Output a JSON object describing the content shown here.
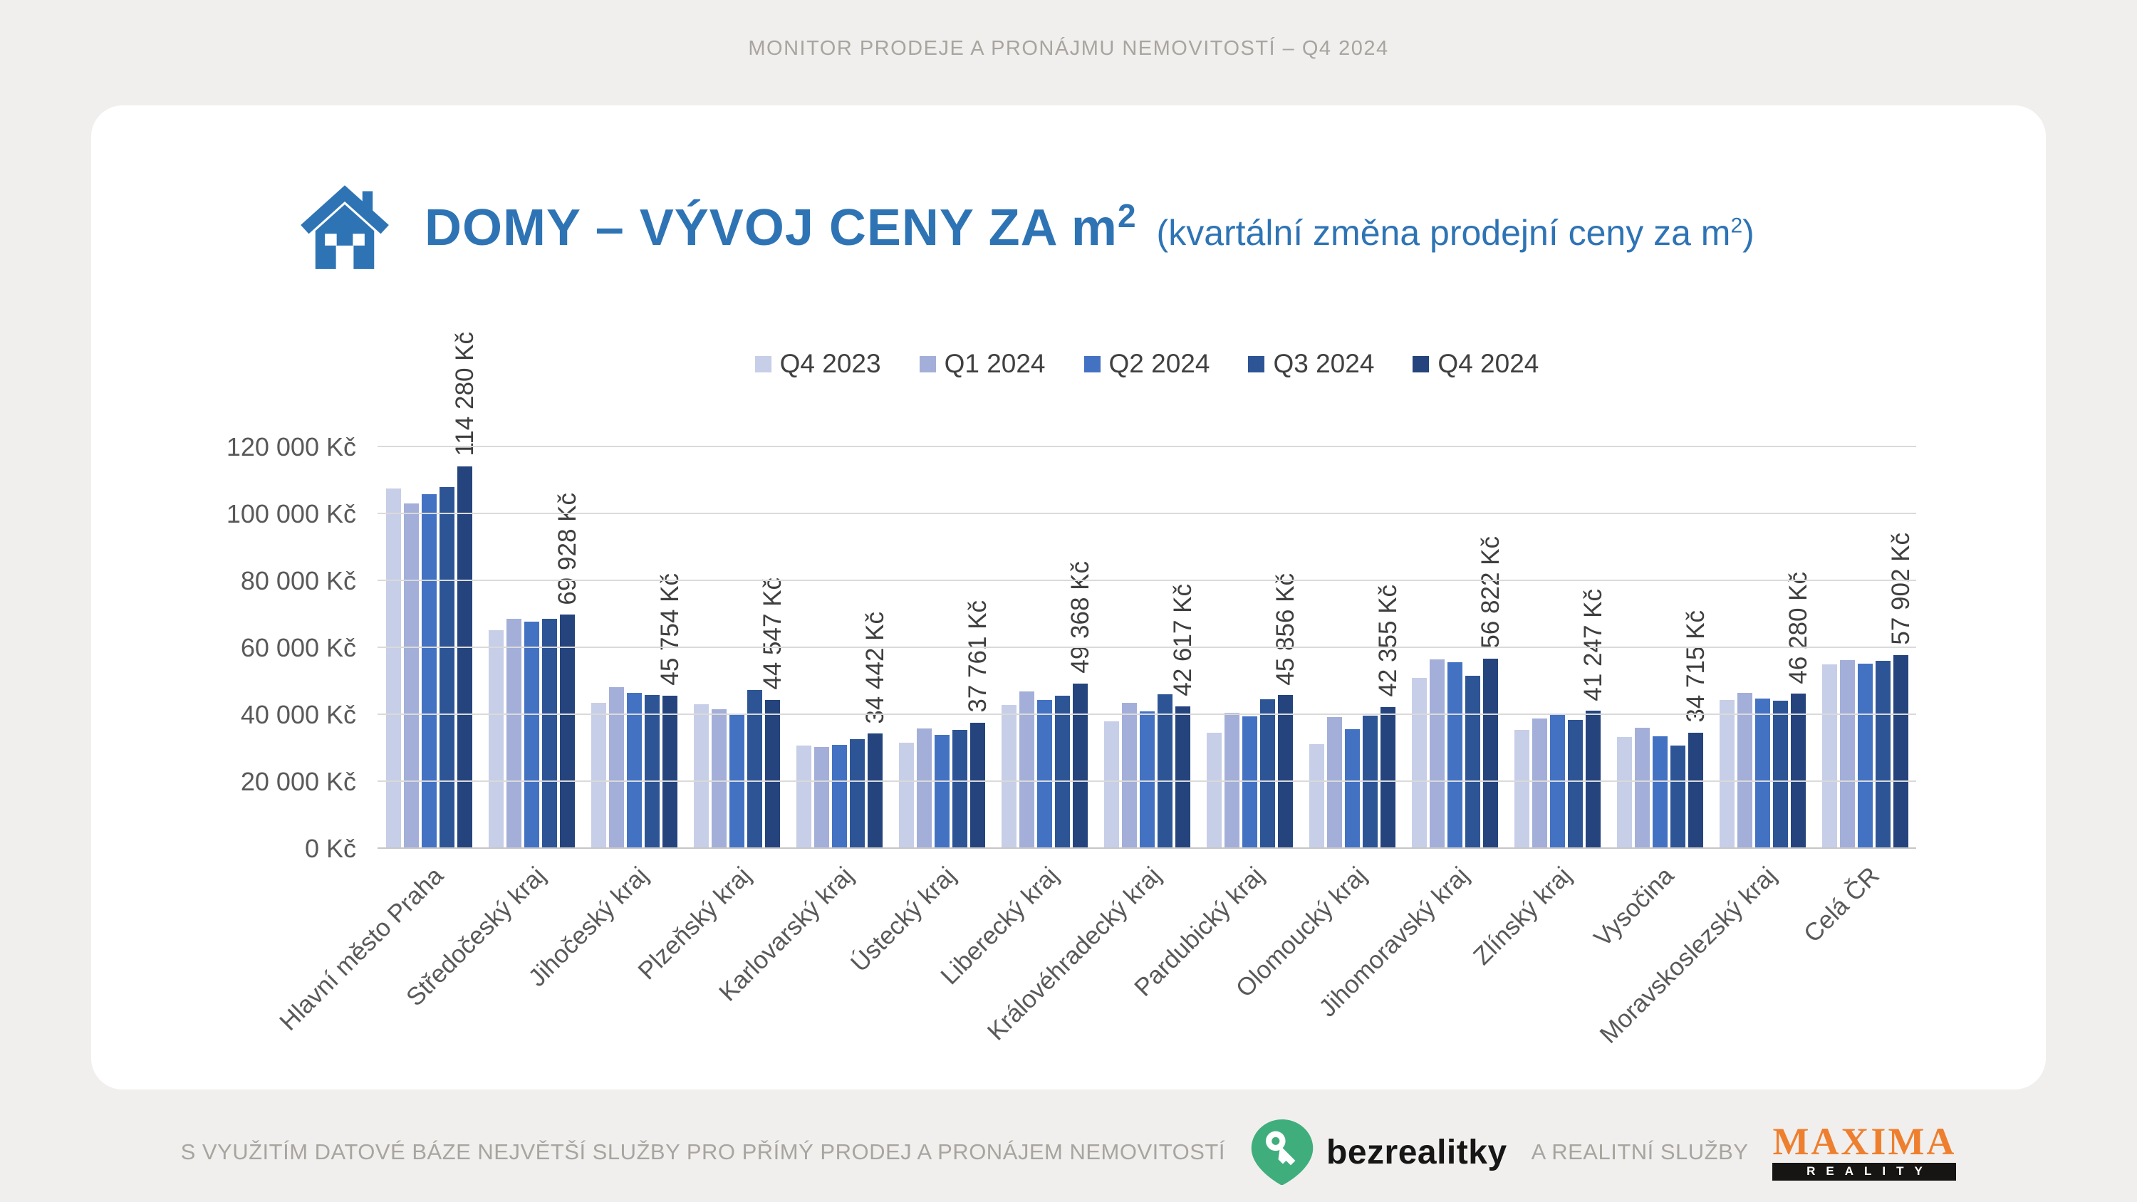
{
  "header": {
    "top_label": "MONITOR PRODEJE A PRONÁJMU NEMOVITOSTÍ – Q4 2024"
  },
  "title": {
    "main": "DOMY – VÝVOJ CENY ZA m",
    "main_sup": "2",
    "sub_prefix": "(kvartální změna prodejní ceny za m",
    "sub_sup": "2",
    "sub_suffix": ")",
    "accent_color": "#2e74b5"
  },
  "chart_data": {
    "type": "bar",
    "title": "DOMY – VÝVOJ CENY ZA m² (kvartální změna prodejní ceny za m²)",
    "categories": [
      "Hlavní město Praha",
      "Středočeský kraj",
      "Jihočeský kraj",
      "Plzeňský kraj",
      "Karlovarský kraj",
      "Ústecký kraj",
      "Liberecký kraj",
      "Královéhradecký kraj",
      "Pardubický kraj",
      "Olomoucký kraj",
      "Jihomoravský kraj",
      "Zlínský kraj",
      "Vysočina",
      "Moravskoslezský kraj",
      "Celá ČR"
    ],
    "series": [
      {
        "name": "Q4 2023",
        "color": "#c7cee7",
        "values": [
          107700,
          65300,
          43600,
          43100,
          30900,
          31700,
          42900,
          38100,
          34700,
          31300,
          51100,
          35600,
          33500,
          44500,
          55100
        ]
      },
      {
        "name": "Q1 2024",
        "color": "#a3afd8",
        "values": [
          103300,
          68800,
          48400,
          41600,
          30400,
          36000,
          47100,
          43700,
          40700,
          39400,
          56500,
          39000,
          36100,
          46600,
          56400
        ]
      },
      {
        "name": "Q2 2024",
        "color": "#4372c3",
        "values": [
          106000,
          67900,
          46600,
          39900,
          31100,
          34100,
          44500,
          41000,
          39500,
          35800,
          55700,
          40500,
          33600,
          44900,
          55400
        ]
      },
      {
        "name": "Q3 2024",
        "color": "#2d5596",
        "values": [
          108100,
          68800,
          45900,
          47500,
          32800,
          35600,
          45700,
          46200,
          44700,
          39700,
          51600,
          38600,
          30800,
          44200,
          56100
        ]
      },
      {
        "name": "Q4 2024",
        "color": "#25447d",
        "values": [
          114280,
          69928,
          45754,
          44547,
          34442,
          37761,
          49368,
          42617,
          45856,
          42355,
          56822,
          41247,
          34715,
          46280,
          57902
        ]
      }
    ],
    "bar_labels": [
      "114 280 Kč",
      "69 928 Kč",
      "45 754 Kč",
      "44 547 Kč",
      "34 442 Kč",
      "37 761 Kč",
      "49 368 Kč",
      "42 617 Kč",
      "45 856 Kč",
      "42 355 Kč",
      "56 822 Kč",
      "41 247 Kč",
      "34 715 Kč",
      "46 280 Kč",
      "57 902 Kč"
    ],
    "ylim": [
      0,
      120000
    ],
    "ytick_step": 20000,
    "ytick_labels": [
      "0 Kč",
      "20 000 Kč",
      "40 000 Kč",
      "60 000 Kč",
      "80 000 Kč",
      "100 000 Kč",
      "120 000 Kč"
    ],
    "grid": true,
    "legend_position": "top"
  },
  "footer": {
    "note": "S VYUŽITÍM DATOVÉ BÁZE NEJVĚTŠÍ SLUŽBY PRO PŘÍMÝ PRODEJ A PRONÁJEM NEMOVITOSTÍ",
    "bezrealitky": "bezrealitky",
    "bezrealitky_color": "#3fae7c",
    "services_label": "A REALITNÍ SLUŽBY",
    "maxima": "MAXIMA",
    "maxima_sub": "REALITY",
    "maxima_color": "#ee7f2e"
  }
}
